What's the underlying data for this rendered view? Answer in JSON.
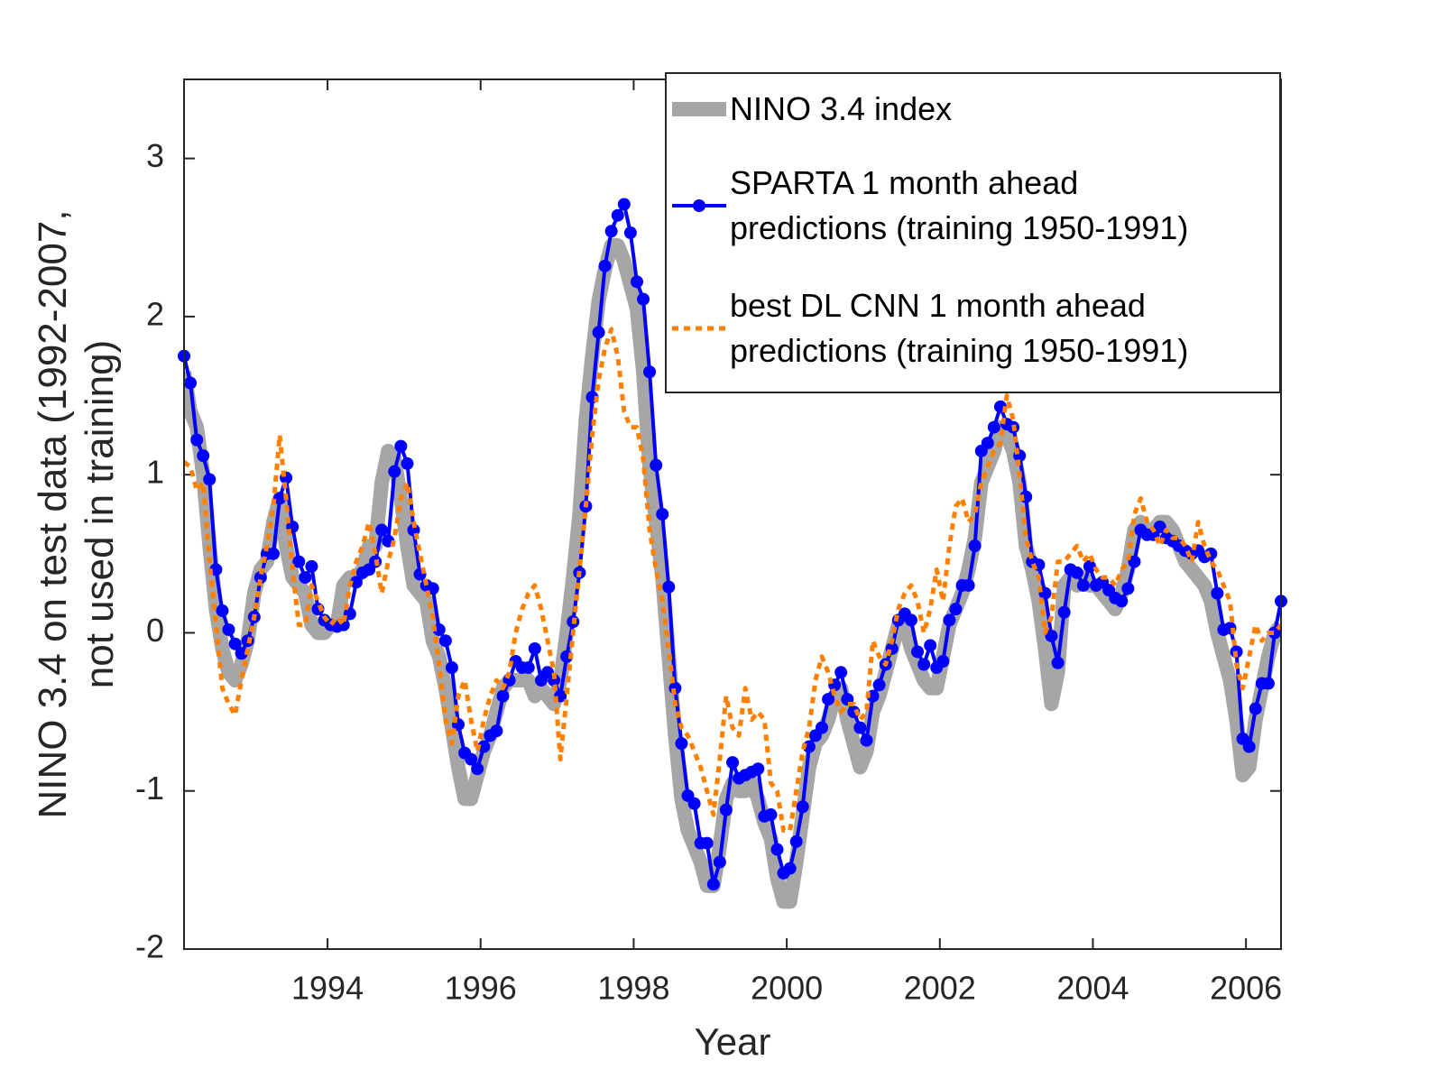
{
  "chart_data": {
    "type": "line",
    "xlabel": "Year",
    "ylabel": "NINO 3.4 on test data (1992-2007, not used in training)",
    "xlim": [
      1992.125,
      2006.458
    ],
    "ylim": [
      -2,
      3.5
    ],
    "xticks": [
      1994,
      1996,
      1998,
      2000,
      2002,
      2004,
      2006
    ],
    "yticks": [
      -2,
      -1,
      0,
      1,
      2,
      3
    ],
    "legend": "upper right",
    "x": [
      1992.125,
      1992.208,
      1992.292,
      1992.375,
      1992.458,
      1992.542,
      1992.625,
      1992.708,
      1992.792,
      1992.875,
      1992.958,
      1993.042,
      1993.125,
      1993.208,
      1993.292,
      1993.375,
      1993.458,
      1993.542,
      1993.625,
      1993.708,
      1993.792,
      1993.875,
      1993.958,
      1994.042,
      1994.125,
      1994.208,
      1994.292,
      1994.375,
      1994.458,
      1994.542,
      1994.625,
      1994.708,
      1994.792,
      1994.875,
      1994.958,
      1995.042,
      1995.125,
      1995.208,
      1995.292,
      1995.375,
      1995.458,
      1995.542,
      1995.625,
      1995.708,
      1995.792,
      1995.875,
      1995.958,
      1996.042,
      1996.125,
      1996.208,
      1996.292,
      1996.375,
      1996.458,
      1996.542,
      1996.625,
      1996.708,
      1996.792,
      1996.875,
      1996.958,
      1997.042,
      1997.125,
      1997.208,
      1997.292,
      1997.375,
      1997.458,
      1997.542,
      1997.625,
      1997.708,
      1997.792,
      1997.875,
      1997.958,
      1998.042,
      1998.125,
      1998.208,
      1998.292,
      1998.375,
      1998.458,
      1998.542,
      1998.625,
      1998.708,
      1998.792,
      1998.875,
      1998.958,
      1999.042,
      1999.125,
      1999.208,
      1999.292,
      1999.375,
      1999.458,
      1999.542,
      1999.625,
      1999.708,
      1999.792,
      1999.875,
      1999.958,
      2000.042,
      2000.125,
      2000.208,
      2000.292,
      2000.375,
      2000.458,
      2000.542,
      2000.625,
      2000.708,
      2000.792,
      2000.875,
      2000.958,
      2001.042,
      2001.125,
      2001.208,
      2001.292,
      2001.375,
      2001.458,
      2001.542,
      2001.625,
      2001.708,
      2001.792,
      2001.875,
      2001.958,
      2002.042,
      2002.125,
      2002.208,
      2002.292,
      2002.375,
      2002.458,
      2002.542,
      2002.625,
      2002.708,
      2002.792,
      2002.875,
      2002.958,
      2003.042,
      2003.125,
      2003.208,
      2003.292,
      2003.375,
      2003.458,
      2003.542,
      2003.625,
      2003.708,
      2003.792,
      2003.875,
      2003.958,
      2004.042,
      2004.125,
      2004.208,
      2004.292,
      2004.375,
      2004.458,
      2004.542,
      2004.625,
      2004.708,
      2004.792,
      2004.875,
      2004.958,
      2005.042,
      2005.125,
      2005.208,
      2005.292,
      2005.375,
      2005.458,
      2005.542,
      2005.625,
      2005.708,
      2005.792,
      2005.875,
      2005.958,
      2006.042,
      2006.125,
      2006.208,
      2006.292,
      2006.375,
      2006.458
    ],
    "series": [
      {
        "name": "NINO 3.4 index",
        "color": "#a6a6a6",
        "style": "thick",
        "values": [
          1.65,
          1.4,
          1.3,
          1.0,
          0.55,
          0.15,
          -0.1,
          -0.25,
          -0.3,
          -0.2,
          -0.05,
          0.25,
          0.4,
          0.45,
          0.7,
          0.85,
          0.55,
          0.35,
          0.3,
          0.25,
          0.05,
          0.0,
          0.0,
          0.05,
          0.05,
          0.3,
          0.35,
          0.35,
          0.4,
          0.55,
          0.55,
          0.95,
          1.15,
          1.1,
          0.85,
          0.55,
          0.3,
          0.25,
          0.2,
          -0.05,
          -0.15,
          -0.35,
          -0.6,
          -0.85,
          -1.05,
          -1.05,
          -0.9,
          -0.75,
          -0.65,
          -0.5,
          -0.35,
          -0.3,
          -0.3,
          -0.3,
          -0.3,
          -0.4,
          -0.35,
          -0.4,
          -0.45,
          -0.3,
          0.0,
          0.35,
          0.75,
          1.35,
          1.75,
          2.1,
          2.3,
          2.45,
          2.45,
          2.35,
          2.2,
          2.05,
          1.65,
          1.05,
          0.7,
          0.35,
          -0.15,
          -0.65,
          -1.05,
          -1.25,
          -1.35,
          -1.45,
          -1.6,
          -1.6,
          -1.35,
          -1.05,
          -0.95,
          -1.0,
          -1.0,
          -0.95,
          -1.05,
          -1.2,
          -1.3,
          -1.55,
          -1.7,
          -1.7,
          -1.45,
          -1.15,
          -0.85,
          -0.7,
          -0.65,
          -0.55,
          -0.4,
          -0.35,
          -0.55,
          -0.7,
          -0.85,
          -0.75,
          -0.5,
          -0.4,
          -0.25,
          -0.1,
          0.05,
          0.05,
          -0.1,
          -0.2,
          -0.3,
          -0.35,
          -0.35,
          -0.15,
          0.05,
          0.15,
          0.25,
          0.4,
          0.6,
          0.95,
          1.05,
          1.15,
          1.3,
          1.25,
          1.15,
          0.95,
          0.55,
          0.4,
          0.2,
          -0.1,
          -0.45,
          -0.25,
          0.3,
          0.35,
          0.3,
          0.35,
          0.3,
          0.3,
          0.25,
          0.2,
          0.15,
          0.25,
          0.4,
          0.65,
          0.7,
          0.65,
          0.65,
          0.7,
          0.7,
          0.65,
          0.55,
          0.45,
          0.4,
          0.35,
          0.3,
          0.2,
          0.0,
          -0.15,
          -0.3,
          -0.55,
          -0.9,
          -0.85,
          -0.55,
          -0.35,
          -0.15,
          0.0,
          0.05
        ]
      },
      {
        "name": "SPARTA 1 month ahead predictions (training 1950-1991)",
        "color": "#0000ff",
        "style": "solid",
        "marker": "circle",
        "values": [
          1.75,
          1.58,
          1.22,
          1.12,
          0.97,
          0.4,
          0.14,
          0.02,
          -0.07,
          -0.13,
          -0.05,
          0.1,
          0.35,
          0.5,
          0.5,
          0.85,
          0.98,
          0.67,
          0.45,
          0.35,
          0.42,
          0.15,
          0.08,
          0.05,
          0.04,
          0.05,
          0.12,
          0.32,
          0.38,
          0.4,
          0.45,
          0.65,
          0.58,
          1.02,
          1.18,
          1.07,
          0.65,
          0.37,
          0.3,
          0.28,
          0.02,
          -0.05,
          -0.22,
          -0.58,
          -0.76,
          -0.8,
          -0.86,
          -0.72,
          -0.65,
          -0.62,
          -0.4,
          -0.3,
          -0.18,
          -0.22,
          -0.22,
          -0.1,
          -0.3,
          -0.25,
          -0.3,
          -0.4,
          -0.15,
          0.07,
          0.38,
          0.8,
          1.49,
          1.9,
          2.32,
          2.54,
          2.64,
          2.71,
          2.53,
          2.22,
          2.11,
          1.65,
          1.06,
          0.75,
          0.29,
          -0.35,
          -0.7,
          -1.03,
          -1.08,
          -1.33,
          -1.33,
          -1.59,
          -1.45,
          -1.12,
          -0.82,
          -0.92,
          -0.9,
          -0.88,
          -0.86,
          -1.16,
          -1.15,
          -1.37,
          -1.52,
          -1.49,
          -1.32,
          -1.1,
          -0.72,
          -0.65,
          -0.6,
          -0.42,
          -0.33,
          -0.25,
          -0.42,
          -0.5,
          -0.6,
          -0.68,
          -0.4,
          -0.33,
          -0.2,
          -0.1,
          0.08,
          0.12,
          0.08,
          -0.12,
          -0.2,
          -0.08,
          -0.22,
          -0.18,
          0.08,
          0.15,
          0.3,
          0.3,
          0.55,
          1.15,
          1.2,
          1.3,
          1.43,
          1.32,
          1.3,
          1.12,
          0.86,
          0.45,
          0.43,
          0.25,
          -0.02,
          -0.19,
          0.13,
          0.4,
          0.38,
          0.3,
          0.42,
          0.3,
          0.32,
          0.27,
          0.22,
          0.2,
          0.28,
          0.45,
          0.65,
          0.62,
          0.62,
          0.67,
          0.6,
          0.58,
          0.55,
          0.52,
          0.5,
          0.52,
          0.48,
          0.5,
          0.25,
          0.02,
          0.03,
          -0.12,
          -0.67,
          -0.72,
          -0.48,
          -0.32,
          -0.32,
          0.0,
          0.2
        ]
      },
      {
        "name": "best DL CNN 1 month ahead predictions (training 1950-1991)",
        "color": "#ff8000",
        "style": "dotted",
        "values": [
          1.08,
          1.05,
          0.9,
          0.95,
          0.45,
          0.05,
          -0.35,
          -0.45,
          -0.52,
          -0.3,
          -0.1,
          0.1,
          0.35,
          0.55,
          0.8,
          1.25,
          0.85,
          0.4,
          0.05,
          0.05,
          0.3,
          0.2,
          0.1,
          0.05,
          0.1,
          0.05,
          0.3,
          0.45,
          0.55,
          0.7,
          0.5,
          0.25,
          0.45,
          0.6,
          0.85,
          0.95,
          0.7,
          0.5,
          0.3,
          0.1,
          -0.2,
          -0.55,
          -0.7,
          -0.4,
          -0.3,
          -0.55,
          -0.75,
          -0.55,
          -0.4,
          -0.3,
          -0.35,
          -0.25,
          0.0,
          0.15,
          0.25,
          0.3,
          0.15,
          -0.05,
          -0.25,
          -0.8,
          -0.4,
          0.0,
          0.4,
          0.8,
          1.25,
          1.6,
          1.8,
          1.92,
          1.75,
          1.4,
          1.3,
          1.3,
          1.1,
          0.65,
          0.4,
          0.2,
          -0.1,
          -0.45,
          -0.6,
          -0.65,
          -0.75,
          -0.85,
          -1.0,
          -1.15,
          -0.8,
          -0.4,
          -0.6,
          -0.65,
          -0.35,
          -0.55,
          -0.5,
          -0.55,
          -0.95,
          -1.0,
          -1.25,
          -1.25,
          -1.0,
          -0.75,
          -0.6,
          -0.3,
          -0.15,
          -0.25,
          -0.4,
          -0.5,
          -0.45,
          -0.45,
          -0.55,
          -0.5,
          -0.05,
          -0.15,
          -0.2,
          -0.05,
          0.15,
          0.25,
          0.3,
          0.2,
          0.0,
          0.15,
          0.4,
          0.2,
          0.55,
          0.8,
          0.85,
          0.7,
          0.75,
          0.95,
          1.05,
          1.15,
          1.2,
          1.5,
          1.35,
          1.0,
          0.6,
          0.45,
          0.35,
          0.0,
          0.1,
          0.45,
          0.45,
          0.5,
          0.55,
          0.45,
          0.5,
          0.4,
          0.35,
          0.35,
          0.3,
          0.4,
          0.45,
          0.75,
          0.85,
          0.7,
          0.65,
          0.55,
          0.65,
          0.6,
          0.6,
          0.55,
          0.45,
          0.7,
          0.55,
          0.45,
          0.4,
          0.3,
          0.2,
          -0.2,
          -0.35,
          -0.15,
          0.05,
          -0.05,
          0.0,
          0.0,
          0.05
        ]
      }
    ]
  }
}
